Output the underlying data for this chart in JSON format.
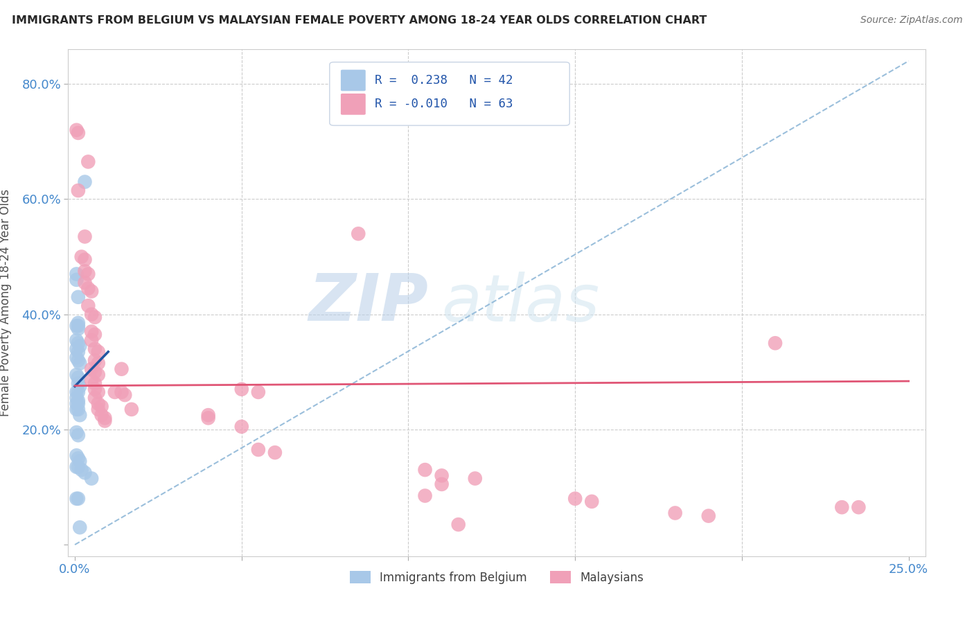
{
  "title": "IMMIGRANTS FROM BELGIUM VS MALAYSIAN FEMALE POVERTY AMONG 18-24 YEAR OLDS CORRELATION CHART",
  "source": "Source: ZipAtlas.com",
  "ylabel": "Female Poverty Among 18-24 Year Olds",
  "xlim": [
    -0.002,
    0.255
  ],
  "ylim": [
    -0.02,
    0.86
  ],
  "xticks": [
    0.0,
    0.05,
    0.1,
    0.15,
    0.2,
    0.25
  ],
  "yticks": [
    0.0,
    0.2,
    0.4,
    0.6,
    0.8
  ],
  "xtick_labels": [
    "0.0%",
    "",
    "",
    "",
    "",
    "25.0%"
  ],
  "ytick_labels": [
    "",
    "20.0%",
    "40.0%",
    "60.0%",
    "80.0%"
  ],
  "belgium_color": "#a8c8e8",
  "malaysia_color": "#f0a0b8",
  "belgium_line_color": "#2255a0",
  "malaysia_line_color": "#e05575",
  "diagonal_line_color": "#90b8d8",
  "watermark_zip": "ZIP",
  "watermark_atlas": "atlas",
  "belgium_scatter": [
    [
      0.001,
      0.385
    ],
    [
      0.001,
      0.38
    ],
    [
      0.003,
      0.63
    ],
    [
      0.0005,
      0.47
    ],
    [
      0.0005,
      0.46
    ],
    [
      0.001,
      0.43
    ],
    [
      0.0005,
      0.38
    ],
    [
      0.001,
      0.375
    ],
    [
      0.0005,
      0.355
    ],
    [
      0.001,
      0.35
    ],
    [
      0.0015,
      0.345
    ],
    [
      0.0005,
      0.34
    ],
    [
      0.001,
      0.335
    ],
    [
      0.0005,
      0.325
    ],
    [
      0.001,
      0.32
    ],
    [
      0.0015,
      0.315
    ],
    [
      0.0005,
      0.295
    ],
    [
      0.001,
      0.29
    ],
    [
      0.001,
      0.28
    ],
    [
      0.0015,
      0.275
    ],
    [
      0.0005,
      0.265
    ],
    [
      0.001,
      0.265
    ],
    [
      0.0005,
      0.255
    ],
    [
      0.001,
      0.25
    ],
    [
      0.0005,
      0.245
    ],
    [
      0.001,
      0.245
    ],
    [
      0.0005,
      0.235
    ],
    [
      0.001,
      0.235
    ],
    [
      0.0015,
      0.225
    ],
    [
      0.0005,
      0.195
    ],
    [
      0.001,
      0.19
    ],
    [
      0.0005,
      0.155
    ],
    [
      0.001,
      0.15
    ],
    [
      0.0015,
      0.145
    ],
    [
      0.0005,
      0.135
    ],
    [
      0.001,
      0.135
    ],
    [
      0.002,
      0.13
    ],
    [
      0.003,
      0.125
    ],
    [
      0.005,
      0.115
    ],
    [
      0.0005,
      0.08
    ],
    [
      0.001,
      0.08
    ],
    [
      0.0015,
      0.03
    ]
  ],
  "malaysia_scatter": [
    [
      0.0005,
      0.72
    ],
    [
      0.001,
      0.715
    ],
    [
      0.004,
      0.665
    ],
    [
      0.001,
      0.615
    ],
    [
      0.003,
      0.535
    ],
    [
      0.002,
      0.5
    ],
    [
      0.003,
      0.495
    ],
    [
      0.003,
      0.475
    ],
    [
      0.004,
      0.47
    ],
    [
      0.003,
      0.455
    ],
    [
      0.004,
      0.445
    ],
    [
      0.005,
      0.44
    ],
    [
      0.004,
      0.415
    ],
    [
      0.005,
      0.4
    ],
    [
      0.006,
      0.395
    ],
    [
      0.005,
      0.37
    ],
    [
      0.006,
      0.365
    ],
    [
      0.005,
      0.355
    ],
    [
      0.006,
      0.34
    ],
    [
      0.007,
      0.335
    ],
    [
      0.006,
      0.32
    ],
    [
      0.007,
      0.315
    ],
    [
      0.005,
      0.305
    ],
    [
      0.006,
      0.3
    ],
    [
      0.007,
      0.295
    ],
    [
      0.005,
      0.285
    ],
    [
      0.006,
      0.28
    ],
    [
      0.006,
      0.27
    ],
    [
      0.007,
      0.265
    ],
    [
      0.006,
      0.255
    ],
    [
      0.007,
      0.245
    ],
    [
      0.008,
      0.24
    ],
    [
      0.007,
      0.235
    ],
    [
      0.008,
      0.225
    ],
    [
      0.009,
      0.22
    ],
    [
      0.009,
      0.215
    ],
    [
      0.012,
      0.265
    ],
    [
      0.014,
      0.305
    ],
    [
      0.014,
      0.265
    ],
    [
      0.015,
      0.26
    ],
    [
      0.017,
      0.235
    ],
    [
      0.085,
      0.54
    ],
    [
      0.05,
      0.27
    ],
    [
      0.055,
      0.265
    ],
    [
      0.04,
      0.225
    ],
    [
      0.04,
      0.22
    ],
    [
      0.05,
      0.205
    ],
    [
      0.055,
      0.165
    ],
    [
      0.06,
      0.16
    ],
    [
      0.11,
      0.12
    ],
    [
      0.12,
      0.115
    ],
    [
      0.15,
      0.08
    ],
    [
      0.18,
      0.055
    ],
    [
      0.19,
      0.05
    ],
    [
      0.21,
      0.35
    ],
    [
      0.105,
      0.13
    ],
    [
      0.11,
      0.105
    ],
    [
      0.155,
      0.075
    ],
    [
      0.23,
      0.065
    ],
    [
      0.235,
      0.065
    ],
    [
      0.115,
      0.035
    ],
    [
      0.105,
      0.085
    ]
  ]
}
